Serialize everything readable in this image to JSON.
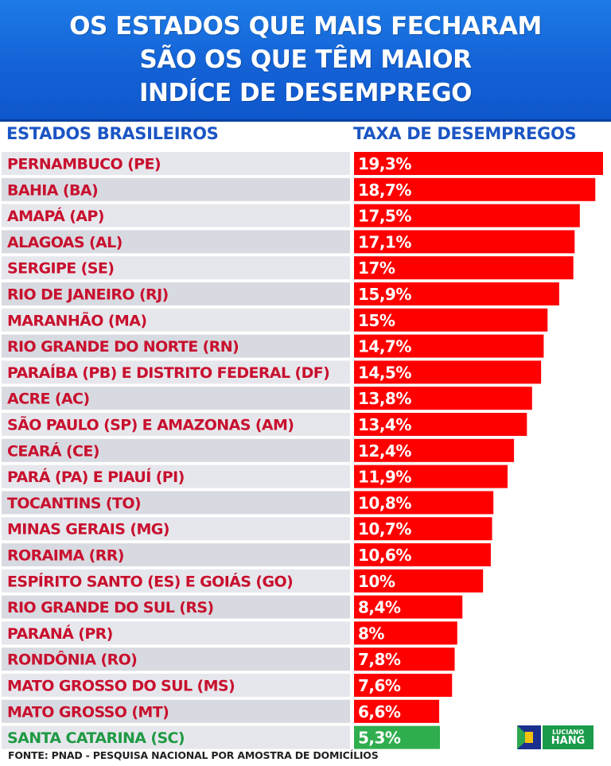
{
  "header": {
    "line1": "OS ESTADOS QUE MAIS FECHARAM",
    "line2": "SÃO OS QUE TÊM MAIOR",
    "line3": "INDÍCE DE DESEMPREGO"
  },
  "columns": {
    "left": "ESTADOS BRASILEIROS",
    "right": "TAXA DE DESEMPREGOS"
  },
  "footer": "FONTE: PNAD - PESQUISA NACIONAL POR AMOSTRA DE DOMICÍLIOS",
  "logo": {
    "line1": "LUCIANO",
    "line2": "HANG"
  },
  "colors": {
    "bar": "#ff0000",
    "highlight_bar": "#2fae4e",
    "state_text": "#c8102e",
    "highlight_text": "#1f9a44",
    "row_bg_a": "#e6e7ec",
    "row_bg_b": "#d8dae1"
  },
  "chart_data": {
    "type": "bar",
    "orientation": "horizontal",
    "categories": [
      "PERNAMBUCO (PE)",
      "BAHIA (BA)",
      "AMAPÁ (AP)",
      "ALAGOAS (AL)",
      "SERGIPE (SE)",
      "RIO DE JANEIRO (RJ)",
      "MARANHÃO (MA)",
      "RIO GRANDE DO NORTE (RN)",
      "PARAÍBA  (PB) E DISTRITO FEDERAL (DF)",
      "ACRE (AC)",
      "SÃO PAULO (SP) E AMAZONAS (AM)",
      "CEARÁ (CE)",
      "PARÁ (PA) E PIAUÍ (PI)",
      "TOCANTINS (TO)",
      "MINAS GERAIS (MG)",
      "RORAIMA (RR)",
      "ESPÍRITO SANTO (ES) E GOIÁS (GO)",
      "RIO GRANDE DO SUL (RS)",
      "PARANÁ (PR)",
      "RONDÔNIA (RO)",
      "MATO GROSSO DO SUL (MS)",
      "MATO GROSSO (MT)",
      "SANTA CATARINA (SC)"
    ],
    "values": [
      19.3,
      18.7,
      17.5,
      17.1,
      17,
      15.9,
      15,
      14.7,
      14.5,
      13.8,
      13.4,
      12.4,
      11.9,
      10.8,
      10.7,
      10.6,
      10,
      8.4,
      8,
      7.8,
      7.6,
      6.6,
      5.3
    ],
    "labels": [
      "19,3%",
      "18,7%",
      "17,5%",
      "17,1%",
      "17%",
      "15,9%",
      "15%",
      "14,7%",
      "14,5%",
      "13,8%",
      "13,4%",
      "12,4%",
      "11,9%",
      "10,8%",
      "10,7%",
      "10,6%",
      "10%",
      "8,4%",
      "8%",
      "7,8%",
      "7,6%",
      "6,6%",
      "5,3%"
    ],
    "highlight": "SANTA CATARINA (SC)",
    "xlim": [
      0,
      19.3
    ]
  }
}
